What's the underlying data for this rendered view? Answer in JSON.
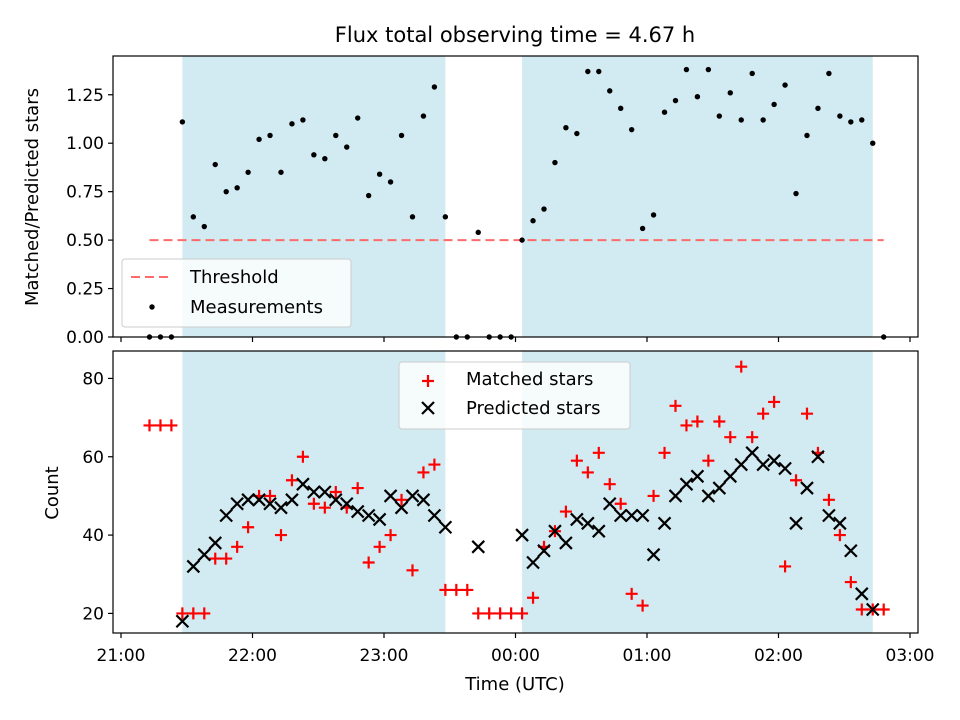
{
  "colors": {
    "shade": "#add8e6",
    "threshold": "#ff6b6b",
    "matched": "#ff0000",
    "predicted": "#000000",
    "measurements": "#000000"
  },
  "chart_data": [
    {
      "type": "scatter",
      "title": "Flux total observing time = 4.67 h",
      "xlabel": "",
      "ylabel": "Matched/Predicted stars",
      "ylim": [
        0,
        1.45
      ],
      "yticks": [
        "0.00",
        "0.25",
        "0.50",
        "0.75",
        "1.00",
        "1.25"
      ],
      "x_axis": "time (UTC), shared with lower panel",
      "shaded_intervals": [
        [
          "21:28",
          "23:28"
        ],
        [
          "00:03",
          "02:43"
        ]
      ],
      "threshold": {
        "name": "Threshold",
        "value": 0.5,
        "x_start": "21:13",
        "x_end": "02:48",
        "style": "dashed"
      },
      "legend": {
        "placement": "lower-left",
        "entries": [
          "Threshold",
          "Measurements"
        ]
      },
      "series": [
        {
          "name": "Measurements",
          "marker": "dot",
          "x": [
            "21:13",
            "21:18",
            "21:23",
            "21:28",
            "21:33",
            "21:38",
            "21:43",
            "21:48",
            "21:53",
            "21:58",
            "22:03",
            "22:08",
            "22:13",
            "22:18",
            "22:23",
            "22:28",
            "22:33",
            "22:38",
            "22:43",
            "22:48",
            "22:53",
            "22:58",
            "23:03",
            "23:08",
            "23:13",
            "23:18",
            "23:23",
            "23:28",
            "23:33",
            "23:38",
            "23:43",
            "23:48",
            "23:53",
            "23:58",
            "00:03",
            "00:08",
            "00:13",
            "00:18",
            "00:23",
            "00:28",
            "00:33",
            "00:38",
            "00:43",
            "00:48",
            "00:53",
            "00:58",
            "01:03",
            "01:08",
            "01:13",
            "01:18",
            "01:23",
            "01:28",
            "01:33",
            "01:38",
            "01:43",
            "01:48",
            "01:53",
            "01:58",
            "02:03",
            "02:08",
            "02:13",
            "02:18",
            "02:23",
            "02:28",
            "02:33",
            "02:38",
            "02:43",
            "02:48"
          ],
          "y": [
            0.0,
            0.0,
            0.0,
            1.11,
            0.62,
            0.57,
            0.89,
            0.75,
            0.77,
            0.85,
            1.02,
            1.04,
            0.85,
            1.1,
            1.12,
            0.94,
            0.92,
            1.04,
            0.98,
            1.13,
            0.73,
            0.84,
            0.8,
            1.04,
            0.62,
            1.14,
            1.29,
            0.62,
            0.0,
            0.0,
            0.54,
            0.0,
            0.0,
            0.0,
            0.5,
            0.6,
            0.66,
            0.9,
            1.08,
            1.05,
            1.37,
            1.37,
            1.27,
            1.18,
            1.07,
            0.56,
            0.63,
            1.16,
            1.22,
            1.38,
            1.24,
            1.38,
            1.14,
            1.26,
            1.12,
            1.36,
            1.12,
            1.2,
            1.3,
            0.74,
            1.04,
            1.18,
            1.36,
            1.14,
            1.11,
            1.12,
            1.0,
            0.0
          ]
        }
      ]
    },
    {
      "type": "scatter",
      "title": "",
      "xlabel": "Time (UTC)",
      "ylabel": "Count",
      "ylim": [
        15,
        87
      ],
      "yticks": [
        "20",
        "40",
        "60",
        "80"
      ],
      "xticks": [
        "21:00",
        "22:00",
        "23:00",
        "00:00",
        "01:00",
        "02:00",
        "03:00"
      ],
      "x_range": [
        "21:00",
        "03:00 next day"
      ],
      "shaded_intervals": [
        [
          "21:28",
          "23:28"
        ],
        [
          "00:03",
          "02:43"
        ]
      ],
      "legend": {
        "placement": "upper-center",
        "entries": [
          "Matched stars",
          "Predicted stars"
        ]
      },
      "series": [
        {
          "name": "Matched stars",
          "marker": "plus",
          "x": [
            "21:13",
            "21:18",
            "21:23",
            "21:28",
            "21:33",
            "21:38",
            "21:43",
            "21:48",
            "21:53",
            "21:58",
            "22:03",
            "22:08",
            "22:13",
            "22:18",
            "22:23",
            "22:28",
            "22:33",
            "22:38",
            "22:43",
            "22:48",
            "22:53",
            "22:58",
            "23:03",
            "23:08",
            "23:13",
            "23:18",
            "23:23",
            "23:28",
            "23:33",
            "23:38",
            "23:43",
            "23:48",
            "23:53",
            "23:58",
            "00:03",
            "00:08",
            "00:13",
            "00:18",
            "00:23",
            "00:28",
            "00:33",
            "00:38",
            "00:43",
            "00:48",
            "00:53",
            "00:58",
            "01:03",
            "01:08",
            "01:13",
            "01:18",
            "01:23",
            "01:28",
            "01:33",
            "01:38",
            "01:43",
            "01:48",
            "01:53",
            "01:58",
            "02:03",
            "02:08",
            "02:13",
            "02:18",
            "02:23",
            "02:28",
            "02:33",
            "02:38",
            "02:43",
            "02:48"
          ],
          "y": [
            68,
            68,
            68,
            20,
            20,
            20,
            34,
            34,
            37,
            42,
            50,
            50,
            40,
            54,
            60,
            48,
            47,
            51,
            47,
            52,
            33,
            37,
            40,
            49,
            31,
            56,
            58,
            26,
            26,
            26,
            20,
            20,
            20,
            20,
            20,
            24,
            37,
            41,
            46,
            59,
            56,
            61,
            53,
            48,
            25,
            22,
            50,
            61,
            73,
            68,
            69,
            59,
            69,
            65,
            83,
            65,
            71,
            74,
            32,
            54,
            71,
            61,
            49,
            40,
            28,
            21,
            21,
            21
          ]
        },
        {
          "name": "Predicted stars",
          "marker": "x",
          "x": [
            "21:28",
            "21:33",
            "21:38",
            "21:43",
            "21:48",
            "21:53",
            "21:58",
            "22:03",
            "22:08",
            "22:13",
            "22:18",
            "22:23",
            "22:28",
            "22:33",
            "22:38",
            "22:43",
            "22:48",
            "22:53",
            "22:58",
            "23:03",
            "23:08",
            "23:13",
            "23:18",
            "23:23",
            "23:28",
            "23:43",
            "00:03",
            "00:08",
            "00:13",
            "00:18",
            "00:23",
            "00:28",
            "00:33",
            "00:38",
            "00:43",
            "00:48",
            "00:53",
            "00:58",
            "01:03",
            "01:08",
            "01:13",
            "01:18",
            "01:23",
            "01:28",
            "01:33",
            "01:38",
            "01:43",
            "01:48",
            "01:53",
            "01:58",
            "02:03",
            "02:08",
            "02:13",
            "02:18",
            "02:23",
            "02:28",
            "02:33",
            "02:38",
            "02:43"
          ],
          "y": [
            18,
            32,
            35,
            38,
            45,
            48,
            49,
            49,
            48,
            47,
            49,
            53,
            51,
            51,
            49,
            48,
            46,
            45,
            44,
            50,
            47,
            50,
            49,
            45,
            42,
            37,
            40,
            33,
            36,
            41,
            38,
            44,
            43,
            41,
            48,
            45,
            45,
            45,
            35,
            43,
            50,
            53,
            55,
            50,
            52,
            55,
            58,
            61,
            58,
            59,
            57,
            43,
            52,
            60,
            45,
            43,
            36,
            25,
            21
          ]
        }
      ]
    }
  ]
}
